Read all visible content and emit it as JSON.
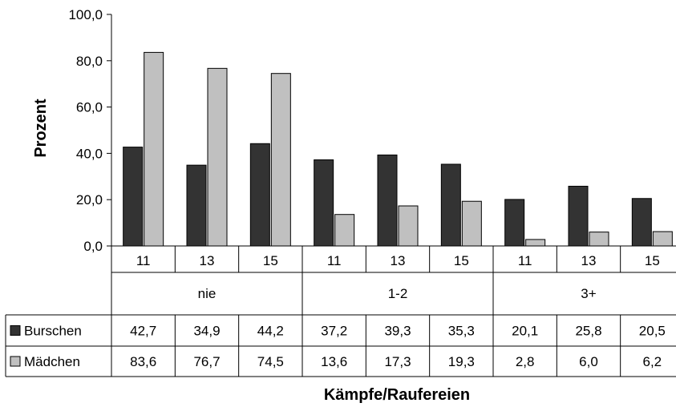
{
  "chart_data": {
    "type": "bar",
    "title": "",
    "xlabel": "Kämpfe/Raufereien",
    "ylabel": "Prozent",
    "ylim": [
      0,
      100
    ],
    "yticks": [
      "0,0",
      "20,0",
      "40,0",
      "60,0",
      "80,0",
      "100,0"
    ],
    "grid": false,
    "legend": "table-left",
    "groups": [
      "nie",
      "1-2",
      "3+"
    ],
    "categories": [
      "11",
      "13",
      "15",
      "11",
      "13",
      "15",
      "11",
      "13",
      "15"
    ],
    "series": [
      {
        "name": "Burschen",
        "color": "#333333",
        "values": [
          42.7,
          34.9,
          44.2,
          37.2,
          39.3,
          35.3,
          20.1,
          25.8,
          20.5
        ],
        "labels": [
          "42,7",
          "34,9",
          "44,2",
          "37,2",
          "39,3",
          "35,3",
          "20,1",
          "25,8",
          "20,5"
        ]
      },
      {
        "name": "Mädchen",
        "color": "#c0c0c0",
        "values": [
          83.6,
          76.7,
          74.5,
          13.6,
          17.3,
          19.3,
          2.8,
          6.0,
          6.2
        ],
        "labels": [
          "83,6",
          "76,7",
          "74,5",
          "13,6",
          "17,3",
          "19,3",
          "2,8",
          "6,0",
          "6,2"
        ]
      }
    ]
  }
}
